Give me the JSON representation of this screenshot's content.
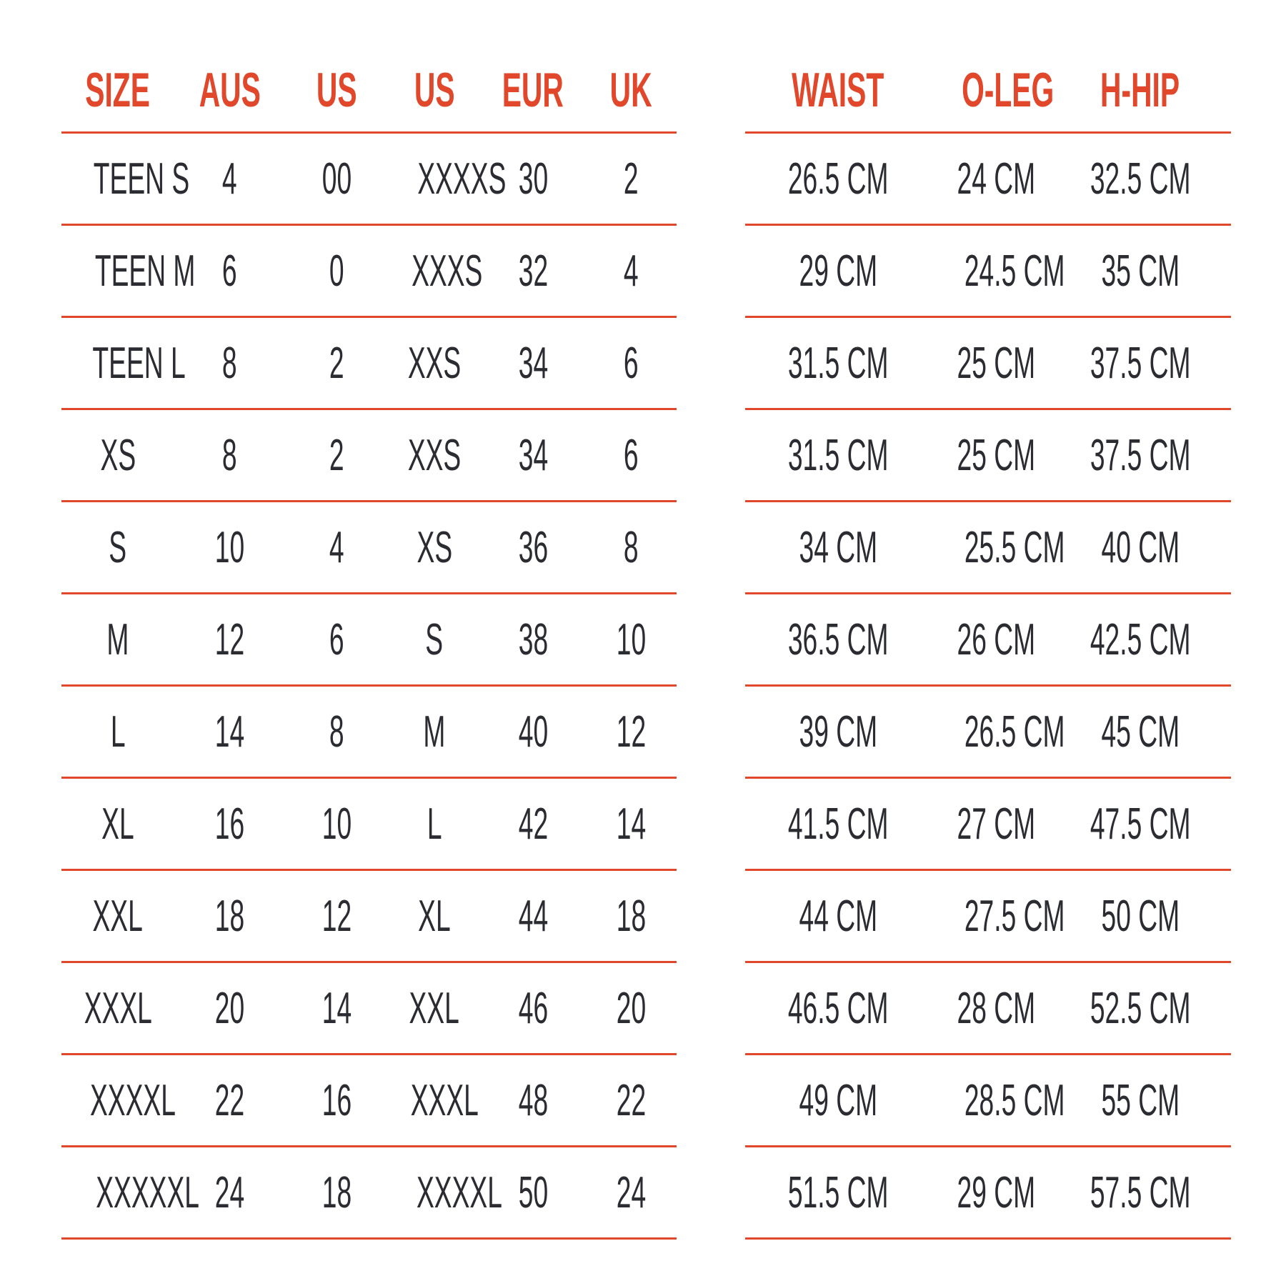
{
  "colors": {
    "accent": "#e0472b",
    "text": "#2a2c31"
  },
  "size_table": {
    "headers": [
      "SIZE",
      "AUS",
      "US",
      "US",
      "EUR",
      "UK"
    ],
    "rows": [
      [
        "TEEN S",
        "4",
        "00",
        "XXXXS",
        "30",
        "2"
      ],
      [
        "TEEN M",
        "6",
        "0",
        "XXXS",
        "32",
        "4"
      ],
      [
        "TEEN L",
        "8",
        "2",
        "XXS",
        "34",
        "6"
      ],
      [
        "XS",
        "8",
        "2",
        "XXS",
        "34",
        "6"
      ],
      [
        "S",
        "10",
        "4",
        "XS",
        "36",
        "8"
      ],
      [
        "M",
        "12",
        "6",
        "S",
        "38",
        "10"
      ],
      [
        "L",
        "14",
        "8",
        "M",
        "40",
        "12"
      ],
      [
        "XL",
        "16",
        "10",
        "L",
        "42",
        "14"
      ],
      [
        "XXL",
        "18",
        "12",
        "XL",
        "44",
        "18"
      ],
      [
        "XXXL",
        "20",
        "14",
        "XXL",
        "46",
        "20"
      ],
      [
        "XXXXL",
        "22",
        "16",
        "XXXL",
        "48",
        "22"
      ],
      [
        "XXXXXL",
        "24",
        "18",
        "XXXXL",
        "50",
        "24"
      ]
    ]
  },
  "measure_table": {
    "headers": [
      "WAIST",
      "O-LEG",
      "H-HIP"
    ],
    "rows": [
      [
        "26.5 CM",
        "24 CM",
        "32.5 CM"
      ],
      [
        "29 CM",
        "24.5 CM",
        "35 CM"
      ],
      [
        "31.5 CM",
        "25 CM",
        "37.5 CM"
      ],
      [
        "31.5 CM",
        "25 CM",
        "37.5 CM"
      ],
      [
        "34 CM",
        "25.5 CM",
        "40 CM"
      ],
      [
        "36.5 CM",
        "26 CM",
        "42.5 CM"
      ],
      [
        "39 CM",
        "26.5 CM",
        "45 CM"
      ],
      [
        "41.5 CM",
        "27 CM",
        "47.5 CM"
      ],
      [
        "44 CM",
        "27.5 CM",
        "50 CM"
      ],
      [
        "46.5 CM",
        "28 CM",
        "52.5 CM"
      ],
      [
        "49 CM",
        "28.5 CM",
        "55 CM"
      ],
      [
        "51.5 CM",
        "29 CM",
        "57.5 CM"
      ]
    ]
  }
}
